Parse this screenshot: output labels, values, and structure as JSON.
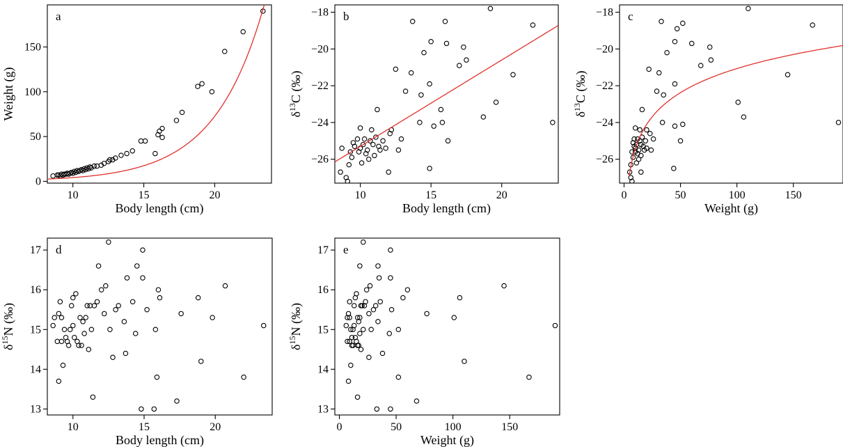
{
  "colors": {
    "fit_line": "#e0302b",
    "points": "#000000"
  },
  "chart_data": [
    {
      "panel": "a",
      "type": "scatter",
      "xlabel": "Body length (cm)",
      "ylabel": "Weight (g)",
      "xlim": [
        8.2,
        24
      ],
      "ylim": [
        -2,
        197
      ],
      "xticks": [
        10,
        15,
        20
      ],
      "yticks": [
        0,
        50,
        100,
        150
      ],
      "points": [
        [
          8.6,
          6
        ],
        [
          8.9,
          7
        ],
        [
          9.0,
          7
        ],
        [
          9.1,
          6
        ],
        [
          9.2,
          8
        ],
        [
          9.3,
          7
        ],
        [
          9.4,
          8
        ],
        [
          9.5,
          8
        ],
        [
          9.6,
          9
        ],
        [
          9.7,
          8
        ],
        [
          9.8,
          9
        ],
        [
          9.9,
          10
        ],
        [
          10.0,
          9
        ],
        [
          10.1,
          11
        ],
        [
          10.2,
          10
        ],
        [
          10.3,
          12
        ],
        [
          10.4,
          11
        ],
        [
          10.5,
          12
        ],
        [
          10.6,
          13
        ],
        [
          10.7,
          12
        ],
        [
          10.8,
          14
        ],
        [
          10.9,
          13
        ],
        [
          11.0,
          15
        ],
        [
          11.1,
          14
        ],
        [
          11.2,
          16
        ],
        [
          11.3,
          15
        ],
        [
          11.5,
          17
        ],
        [
          11.7,
          17
        ],
        [
          12.0,
          18
        ],
        [
          12.2,
          20
        ],
        [
          12.5,
          22
        ],
        [
          12.6,
          24
        ],
        [
          12.8,
          24
        ],
        [
          13.0,
          26
        ],
        [
          13.4,
          29
        ],
        [
          13.8,
          31
        ],
        [
          14.2,
          34
        ],
        [
          14.8,
          45
        ],
        [
          15.1,
          45
        ],
        [
          15.8,
          31
        ],
        [
          16.0,
          52
        ],
        [
          16.1,
          56
        ],
        [
          16.3,
          49
        ],
        [
          16.3,
          59
        ],
        [
          17.3,
          68
        ],
        [
          17.7,
          77
        ],
        [
          18.8,
          106
        ],
        [
          19.1,
          109
        ],
        [
          19.8,
          100
        ],
        [
          20.7,
          145
        ],
        [
          22.0,
          167
        ],
        [
          23.4,
          190
        ]
      ],
      "fit": {
        "kind": "exponential",
        "a": 0.24,
        "b": 0.2857
      }
    },
    {
      "panel": "b",
      "type": "scatter",
      "xlabel": "Body length (cm)",
      "ylabel": "δ13C (‰)",
      "xlim": [
        8.2,
        24
      ],
      "ylim": [
        -27.3,
        -17.6
      ],
      "xticks": [
        10,
        15,
        20
      ],
      "yticks": [
        -26,
        -24,
        -22,
        -20,
        -18
      ],
      "points": [
        [
          8.6,
          -26.7
        ],
        [
          8.7,
          -25.4
        ],
        [
          9.0,
          -27.0
        ],
        [
          9.1,
          -27.2
        ],
        [
          9.2,
          -26.3
        ],
        [
          9.3,
          -25.6
        ],
        [
          9.4,
          -25.9
        ],
        [
          9.5,
          -25.1
        ],
        [
          9.6,
          -25.3
        ],
        [
          9.8,
          -24.9
        ],
        [
          9.9,
          -25.6
        ],
        [
          10.0,
          -25.4
        ],
        [
          10.0,
          -24.3
        ],
        [
          10.1,
          -26.2
        ],
        [
          10.2,
          -25.2
        ],
        [
          10.3,
          -24.9
        ],
        [
          10.4,
          -25.7
        ],
        [
          10.5,
          -25.5
        ],
        [
          10.6,
          -26.0
        ],
        [
          10.7,
          -25.0
        ],
        [
          10.8,
          -24.4
        ],
        [
          10.9,
          -25.2
        ],
        [
          11.0,
          -25.8
        ],
        [
          11.1,
          -24.8
        ],
        [
          11.2,
          -23.3
        ],
        [
          11.3,
          -25.3
        ],
        [
          11.4,
          -25.5
        ],
        [
          11.6,
          -25.0
        ],
        [
          11.8,
          -25.4
        ],
        [
          12.0,
          -26.7
        ],
        [
          12.2,
          -24.4
        ],
        [
          12.5,
          -21.1
        ],
        [
          12.7,
          -25.5
        ],
        [
          12.9,
          -24.9
        ],
        [
          13.2,
          -22.3
        ],
        [
          13.6,
          -21.3
        ],
        [
          13.7,
          -18.5
        ],
        [
          14.2,
          -24.0
        ],
        [
          14.3,
          -22.5
        ],
        [
          14.5,
          -20.2
        ],
        [
          14.9,
          -21.9
        ],
        [
          15.0,
          -19.6
        ],
        [
          15.2,
          -24.2
        ],
        [
          15.7,
          -23.3
        ],
        [
          15.8,
          -24.0
        ],
        [
          16.0,
          -18.5
        ],
        [
          16.1,
          -19.7
        ],
        [
          16.2,
          -25.0
        ],
        [
          17.0,
          -20.9
        ],
        [
          17.3,
          -19.9
        ],
        [
          17.5,
          -20.6
        ],
        [
          18.7,
          -23.7
        ],
        [
          19.2,
          -17.8
        ],
        [
          19.6,
          -22.9
        ],
        [
          20.8,
          -21.4
        ],
        [
          22.2,
          -18.7
        ],
        [
          23.6,
          -24.0
        ],
        [
          14.9,
          -26.5
        ],
        [
          12.1,
          -24.6
        ]
      ],
      "fit": {
        "kind": "linear",
        "slope": 0.47,
        "intercept": -30.0
      }
    },
    {
      "panel": "c",
      "type": "scatter",
      "xlabel": "Weight (g)",
      "ylabel": "δ13C (‰)",
      "xlim": [
        -4,
        194
      ],
      "ylim": [
        -27.3,
        -17.6
      ],
      "xticks": [
        0,
        50,
        100,
        150
      ],
      "yticks": [
        -26,
        -24,
        -22,
        -20,
        -18
      ],
      "points": [
        [
          5,
          -26.7
        ],
        [
          6,
          -27.0
        ],
        [
          7,
          -27.2
        ],
        [
          6,
          -26.3
        ],
        [
          7,
          -25.6
        ],
        [
          8,
          -25.9
        ],
        [
          8,
          -25.1
        ],
        [
          9,
          -25.3
        ],
        [
          9,
          -24.9
        ],
        [
          10,
          -25.6
        ],
        [
          10,
          -25.4
        ],
        [
          10,
          -24.3
        ],
        [
          11,
          -26.2
        ],
        [
          11,
          -25.2
        ],
        [
          12,
          -24.9
        ],
        [
          12,
          -25.7
        ],
        [
          13,
          -25.5
        ],
        [
          13,
          -26.0
        ],
        [
          14,
          -25.0
        ],
        [
          14,
          -24.4
        ],
        [
          15,
          -25.2
        ],
        [
          15,
          -25.8
        ],
        [
          16,
          -24.8
        ],
        [
          16,
          -23.3
        ],
        [
          17,
          -25.3
        ],
        [
          18,
          -25.5
        ],
        [
          19,
          -25.0
        ],
        [
          20,
          -25.4
        ],
        [
          15,
          -26.7
        ],
        [
          20,
          -24.4
        ],
        [
          22,
          -21.1
        ],
        [
          24,
          -25.5
        ],
        [
          26,
          -24.9
        ],
        [
          29,
          -22.3
        ],
        [
          31,
          -21.3
        ],
        [
          33,
          -18.5
        ],
        [
          34,
          -24.0
        ],
        [
          35,
          -22.5
        ],
        [
          38,
          -20.2
        ],
        [
          45,
          -21.9
        ],
        [
          45,
          -19.6
        ],
        [
          45,
          -24.2
        ],
        [
          47,
          -18.9
        ],
        [
          50,
          -25.0
        ],
        [
          52,
          -18.6
        ],
        [
          52,
          -24.1
        ],
        [
          60,
          -19.7
        ],
        [
          68,
          -20.9
        ],
        [
          76,
          -19.9
        ],
        [
          77,
          -20.6
        ],
        [
          106,
          -23.7
        ],
        [
          110,
          -17.8
        ],
        [
          101,
          -22.9
        ],
        [
          145,
          -21.4
        ],
        [
          167,
          -18.7
        ],
        [
          190,
          -24.0
        ],
        [
          44,
          -26.5
        ],
        [
          23,
          -24.6
        ]
      ],
      "fit": {
        "kind": "log",
        "a": -29.77,
        "b": 1.89,
        "xmin": 4.5
      }
    },
    {
      "panel": "d",
      "type": "scatter",
      "xlabel": "Body length (cm)",
      "ylabel": "δ15N (‰)",
      "xlim": [
        8.2,
        24
      ],
      "ylim": [
        12.85,
        17.3
      ],
      "xticks": [
        10,
        15,
        20
      ],
      "yticks": [
        13,
        14,
        15,
        16,
        17
      ],
      "points": [
        [
          8.6,
          15.1
        ],
        [
          8.7,
          15.3
        ],
        [
          8.9,
          14.7
        ],
        [
          9.0,
          15.4
        ],
        [
          9.0,
          13.7
        ],
        [
          9.1,
          15.7
        ],
        [
          9.2,
          14.7
        ],
        [
          9.2,
          15.3
        ],
        [
          9.3,
          14.1
        ],
        [
          9.4,
          15.0
        ],
        [
          9.5,
          14.8
        ],
        [
          9.6,
          14.7
        ],
        [
          9.7,
          14.6
        ],
        [
          9.8,
          15.0
        ],
        [
          9.9,
          15.6
        ],
        [
          10.0,
          15.1
        ],
        [
          10.0,
          15.8
        ],
        [
          10.1,
          14.8
        ],
        [
          10.2,
          15.9
        ],
        [
          10.3,
          14.7
        ],
        [
          10.4,
          14.6
        ],
        [
          10.5,
          15.3
        ],
        [
          10.6,
          14.6
        ],
        [
          10.7,
          15.2
        ],
        [
          10.8,
          14.9
        ],
        [
          10.9,
          15.3
        ],
        [
          11.0,
          15.6
        ],
        [
          11.1,
          14.5
        ],
        [
          11.2,
          15.6
        ],
        [
          11.3,
          15.0
        ],
        [
          11.4,
          13.3
        ],
        [
          11.5,
          15.6
        ],
        [
          11.7,
          15.7
        ],
        [
          11.8,
          16.6
        ],
        [
          12.0,
          16.0
        ],
        [
          12.2,
          15.4
        ],
        [
          12.3,
          16.1
        ],
        [
          12.5,
          17.2
        ],
        [
          12.6,
          15.0
        ],
        [
          12.8,
          14.3
        ],
        [
          13.0,
          15.5
        ],
        [
          13.2,
          15.6
        ],
        [
          13.6,
          15.2
        ],
        [
          13.7,
          14.4
        ],
        [
          13.8,
          16.3
        ],
        [
          14.2,
          15.7
        ],
        [
          14.4,
          14.9
        ],
        [
          14.5,
          16.6
        ],
        [
          14.9,
          17.0
        ],
        [
          14.9,
          16.3
        ],
        [
          15.2,
          15.5
        ],
        [
          15.8,
          15.0
        ],
        [
          15.9,
          13.8
        ],
        [
          16.0,
          16.0
        ],
        [
          16.1,
          15.8
        ],
        [
          17.3,
          13.2
        ],
        [
          17.6,
          15.4
        ],
        [
          18.8,
          15.8
        ],
        [
          19.0,
          14.2
        ],
        [
          19.8,
          15.3
        ],
        [
          20.7,
          16.1
        ],
        [
          22.0,
          13.8
        ],
        [
          23.4,
          15.1
        ],
        [
          14.8,
          13.0
        ],
        [
          15.7,
          13.0
        ]
      ]
    },
    {
      "panel": "e",
      "type": "scatter",
      "xlabel": "Weight (g)",
      "ylabel": "δ15N (‰)",
      "xlim": [
        -4,
        194
      ],
      "ylim": [
        12.85,
        17.3
      ],
      "xticks": [
        0,
        50,
        100,
        150
      ],
      "yticks": [
        13,
        14,
        15,
        16,
        17
      ],
      "points": [
        [
          6,
          15.1
        ],
        [
          7,
          15.3
        ],
        [
          7,
          14.7
        ],
        [
          8,
          15.4
        ],
        [
          8,
          13.7
        ],
        [
          9,
          15.7
        ],
        [
          9,
          14.7
        ],
        [
          9,
          15.3
        ],
        [
          10,
          14.1
        ],
        [
          10,
          15.0
        ],
        [
          11,
          14.8
        ],
        [
          11,
          14.6
        ],
        [
          12,
          14.6
        ],
        [
          12,
          15.0
        ],
        [
          13,
          15.6
        ],
        [
          13,
          15.1
        ],
        [
          14,
          15.8
        ],
        [
          14,
          14.8
        ],
        [
          15,
          15.9
        ],
        [
          15,
          14.7
        ],
        [
          16,
          14.6
        ],
        [
          16,
          15.3
        ],
        [
          17,
          14.6
        ],
        [
          17,
          15.2
        ],
        [
          18,
          14.9
        ],
        [
          18,
          15.3
        ],
        [
          19,
          15.6
        ],
        [
          19,
          14.5
        ],
        [
          20,
          15.6
        ],
        [
          21,
          15.0
        ],
        [
          16,
          13.3
        ],
        [
          22,
          15.6
        ],
        [
          23,
          15.7
        ],
        [
          18,
          16.6
        ],
        [
          24,
          16.0
        ],
        [
          26,
          15.4
        ],
        [
          27,
          16.1
        ],
        [
          21,
          17.2
        ],
        [
          28,
          15.0
        ],
        [
          26,
          14.3
        ],
        [
          30,
          15.5
        ],
        [
          32,
          15.6
        ],
        [
          34,
          15.2
        ],
        [
          38,
          14.4
        ],
        [
          35,
          16.3
        ],
        [
          36,
          15.7
        ],
        [
          44,
          14.9
        ],
        [
          34,
          16.6
        ],
        [
          45,
          17.0
        ],
        [
          45,
          16.3
        ],
        [
          46,
          15.5
        ],
        [
          52,
          15.0
        ],
        [
          52,
          13.8
        ],
        [
          60,
          16.0
        ],
        [
          56,
          15.8
        ],
        [
          68,
          13.2
        ],
        [
          77,
          15.4
        ],
        [
          106,
          15.8
        ],
        [
          110,
          14.2
        ],
        [
          101,
          15.3
        ],
        [
          145,
          16.1
        ],
        [
          167,
          13.8
        ],
        [
          190,
          15.1
        ],
        [
          33,
          13.0
        ],
        [
          45,
          13.0
        ]
      ]
    }
  ]
}
